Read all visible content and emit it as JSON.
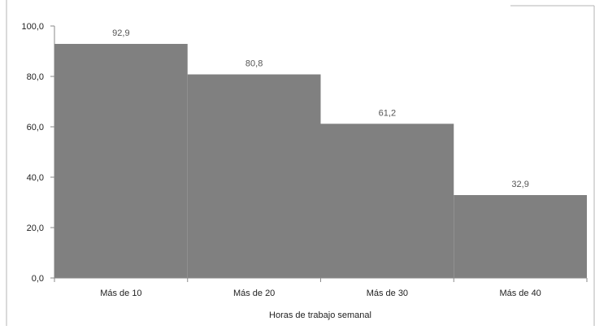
{
  "chart_data": {
    "type": "bar",
    "title": "",
    "xlabel": "Horas de trabajo semanal",
    "ylabel": "",
    "categories": [
      "Más de 10",
      "Más de 20",
      "Más de 30",
      "Más de 40"
    ],
    "values": [
      92.9,
      80.8,
      61.2,
      32.9
    ],
    "data_labels": [
      "92,9",
      "80,8",
      "61,2",
      "32,9"
    ],
    "ylim": [
      0,
      100
    ],
    "y_ticks": [
      0,
      20,
      40,
      60,
      80,
      100
    ],
    "y_tick_labels": [
      "0,0",
      "20,0",
      "40,0",
      "60,0",
      "80,0",
      "100,0"
    ],
    "grid": false,
    "legend": "none",
    "bar_color": "#808080",
    "axis_color": "#8a8a8a"
  }
}
